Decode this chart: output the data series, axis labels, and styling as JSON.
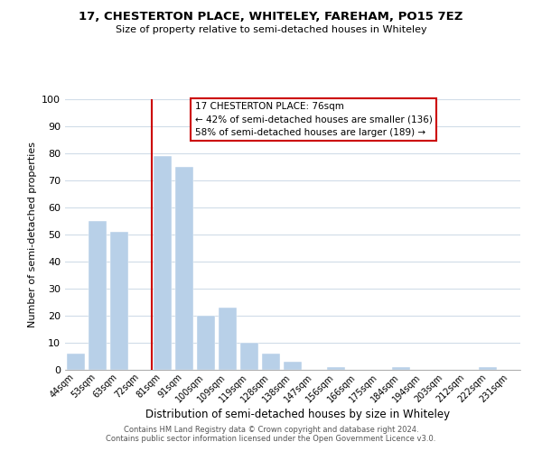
{
  "title": "17, CHESTERTON PLACE, WHITELEY, FAREHAM, PO15 7EZ",
  "subtitle": "Size of property relative to semi-detached houses in Whiteley",
  "xlabel": "Distribution of semi-detached houses by size in Whiteley",
  "ylabel": "Number of semi-detached properties",
  "bar_labels": [
    "44sqm",
    "53sqm",
    "63sqm",
    "72sqm",
    "81sqm",
    "91sqm",
    "100sqm",
    "109sqm",
    "119sqm",
    "128sqm",
    "138sqm",
    "147sqm",
    "156sqm",
    "166sqm",
    "175sqm",
    "184sqm",
    "194sqm",
    "203sqm",
    "212sqm",
    "222sqm",
    "231sqm"
  ],
  "bar_values": [
    6,
    55,
    51,
    0,
    79,
    75,
    20,
    23,
    10,
    6,
    3,
    0,
    1,
    0,
    0,
    1,
    0,
    0,
    0,
    1,
    0
  ],
  "bar_color": "#b8d0e8",
  "highlight_color": "#cc0000",
  "highlight_bar_index": 4,
  "annotation_title": "17 CHESTERTON PLACE: 76sqm",
  "annotation_line1": "← 42% of semi-detached houses are smaller (136)",
  "annotation_line2": "58% of semi-detached houses are larger (189) →",
  "ylim": [
    0,
    100
  ],
  "yticks": [
    0,
    10,
    20,
    30,
    40,
    50,
    60,
    70,
    80,
    90,
    100
  ],
  "grid_color": "#d0dce8",
  "footer1": "Contains HM Land Registry data © Crown copyright and database right 2024.",
  "footer2": "Contains public sector information licensed under the Open Government Licence v3.0."
}
